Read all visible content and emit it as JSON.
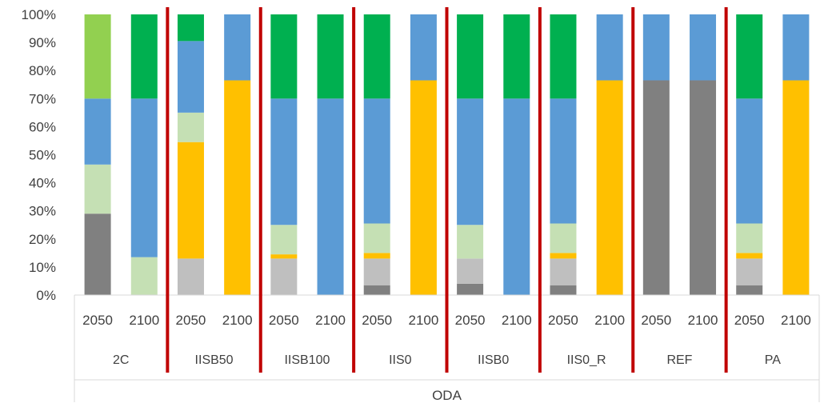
{
  "chart_data": {
    "type": "bar",
    "stacked": true,
    "y_axis": {
      "min": 0,
      "max": 100,
      "unit": "%",
      "tick_labels": [
        "0%",
        "10%",
        "20%",
        "30%",
        "40%",
        "50%",
        "60%",
        "70%",
        "80%",
        "90%",
        "100%"
      ]
    },
    "categories": [
      "2050",
      "2100",
      "2050",
      "2100",
      "2050",
      "2100",
      "2050",
      "2100",
      "2050",
      "2100",
      "2050",
      "2100",
      "2050",
      "2100",
      "2050",
      "2100"
    ],
    "groups": [
      "2C",
      "IISB50",
      "IISB100",
      "IIS0",
      "IISB0",
      "IIS0_R",
      "REF",
      "PA"
    ],
    "group_size": 2,
    "outer_label": "ODA",
    "grid": false,
    "separator_color": "#C00000",
    "series": [
      {
        "color": "#808080",
        "values": [
          29,
          0,
          0,
          0,
          0,
          0,
          3.5,
          0,
          4,
          0,
          3.5,
          0,
          76.5,
          76.5,
          3.5,
          0
        ]
      },
      {
        "color": "#BFBFBF",
        "values": [
          0,
          0,
          13,
          0,
          13,
          0,
          9.5,
          0,
          9,
          0,
          9.5,
          0,
          0,
          0,
          9.5,
          0
        ]
      },
      {
        "color": "#FFC000",
        "values": [
          0,
          0,
          41.5,
          76.5,
          1.5,
          0,
          2,
          76.5,
          0,
          0,
          2,
          76.5,
          0,
          0,
          2,
          76.5
        ]
      },
      {
        "color": "#C5E0B4",
        "values": [
          17.5,
          13.5,
          10.5,
          0,
          10.5,
          0,
          10.5,
          0,
          12,
          0,
          10.5,
          0,
          0,
          0,
          10.5,
          0
        ]
      },
      {
        "color": "#5B9BD5",
        "values": [
          23.5,
          56.5,
          25.5,
          23.5,
          45,
          70,
          44.5,
          23.5,
          45,
          70,
          44.5,
          23.5,
          23.5,
          23.5,
          44.5,
          23.5
        ]
      },
      {
        "color": "#00B050",
        "values": [
          0,
          30,
          9.5,
          0,
          30,
          30,
          30,
          0,
          30,
          30,
          30,
          0,
          0,
          0,
          30,
          0
        ]
      },
      {
        "color": "#92D050",
        "values": [
          30,
          0,
          0,
          0,
          0,
          0,
          0,
          0,
          0,
          0,
          0,
          0,
          0,
          0,
          0,
          0
        ]
      }
    ]
  }
}
